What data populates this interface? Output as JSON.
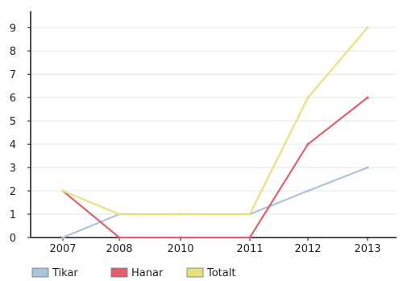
{
  "chart_data": {
    "type": "line",
    "categories": [
      "2007",
      "2008",
      "2010",
      "2011",
      "2012",
      "2013"
    ],
    "y_ticks": [
      "0",
      "1",
      "2",
      "3",
      "4",
      "5",
      "6",
      "7",
      "8",
      "9"
    ],
    "ylim": [
      0,
      9.7
    ],
    "grid": true,
    "legend_position": "bottom-left",
    "series": [
      {
        "name": "Tikar",
        "color": "#a9c4dc",
        "values": [
          0,
          1,
          1,
          1,
          2,
          3
        ]
      },
      {
        "name": "Hanar",
        "color": "#e0606a",
        "values": [
          2,
          0,
          0,
          0,
          4,
          6
        ]
      },
      {
        "name": "Totalt",
        "color": "#e8e07a",
        "values": [
          2,
          1,
          1,
          1,
          6,
          9
        ]
      }
    ]
  }
}
